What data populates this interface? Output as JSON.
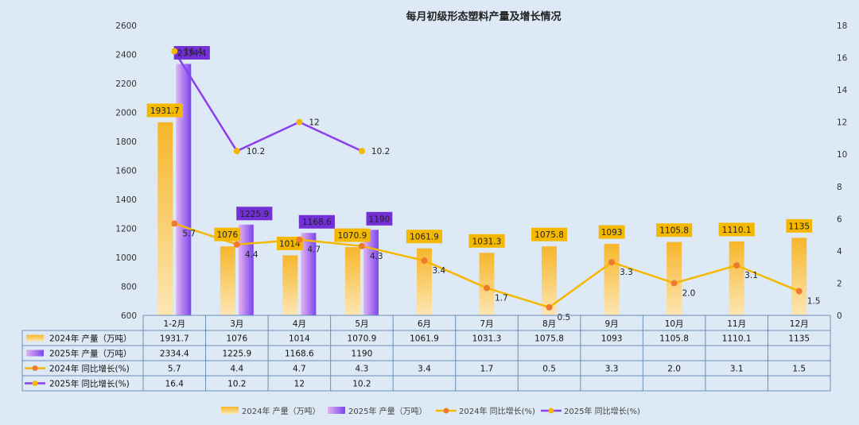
{
  "chart_data": {
    "type": "bar",
    "title": "每月初级形态塑料产量及增长情况",
    "categories": [
      "1-2月",
      "3月",
      "4月",
      "5月",
      "6月",
      "7月",
      "8月",
      "9月",
      "10月",
      "11月",
      "12月"
    ],
    "y_left": {
      "range": [
        600,
        2600
      ],
      "ticks": [
        600,
        800,
        1000,
        1200,
        1400,
        1600,
        1800,
        2000,
        2200,
        2400,
        2600
      ]
    },
    "y_right": {
      "range": [
        0,
        18
      ],
      "ticks": [
        0,
        2,
        4,
        6,
        8,
        10,
        12,
        14,
        16,
        18
      ]
    },
    "series": [
      {
        "name": "2024年 产量（万吨）",
        "type": "bar",
        "axis": "left",
        "color": "#f5b82e",
        "values": [
          1931.7,
          1076,
          1014,
          1070.9,
          1061.9,
          1031.3,
          1075.8,
          1093,
          1105.8,
          1110.1,
          1135
        ],
        "labels": [
          "1931.7",
          "1076",
          "1014",
          "1070.9",
          "1061.9",
          "1031.3",
          "1075.8",
          "1093",
          "1105.8",
          "1110.1",
          "1135"
        ]
      },
      {
        "name": "2025年 产量（万吨）",
        "type": "bar",
        "axis": "left",
        "color": "#9b5de5",
        "values": [
          2334.4,
          1225.9,
          1168.6,
          1190,
          null,
          null,
          null,
          null,
          null,
          null,
          null
        ],
        "labels": [
          "2334.4",
          "1225.9",
          "1168.6",
          "1190",
          "",
          "",
          "",
          "",
          "",
          "",
          ""
        ]
      },
      {
        "name": "2024年 同比增长(%)",
        "type": "line",
        "axis": "right",
        "color": "#f5b800",
        "marker_color": "#ef7a2f",
        "values": [
          5.7,
          4.4,
          4.7,
          4.3,
          3.4,
          1.7,
          0.5,
          3.3,
          2.0,
          3.1,
          1.5
        ],
        "labels": [
          "5.7",
          "4.4",
          "4.7",
          "4.3",
          "3.4",
          "1.7",
          "0.5",
          "3.3",
          "2.0",
          "3.1",
          "1.5"
        ]
      },
      {
        "name": "2025年 同比增长(%)",
        "type": "line",
        "axis": "right",
        "color": "#8a3ff0",
        "marker_color": "#f5b800",
        "values": [
          16.4,
          10.2,
          12,
          10.2,
          null,
          null,
          null,
          null,
          null,
          null,
          null
        ],
        "labels": [
          "16.4",
          "10.2",
          "12",
          "10.2",
          "",
          "",
          "",
          "",
          "",
          "",
          ""
        ]
      }
    ],
    "data_table": true,
    "legend": "bottom",
    "grid": false
  }
}
